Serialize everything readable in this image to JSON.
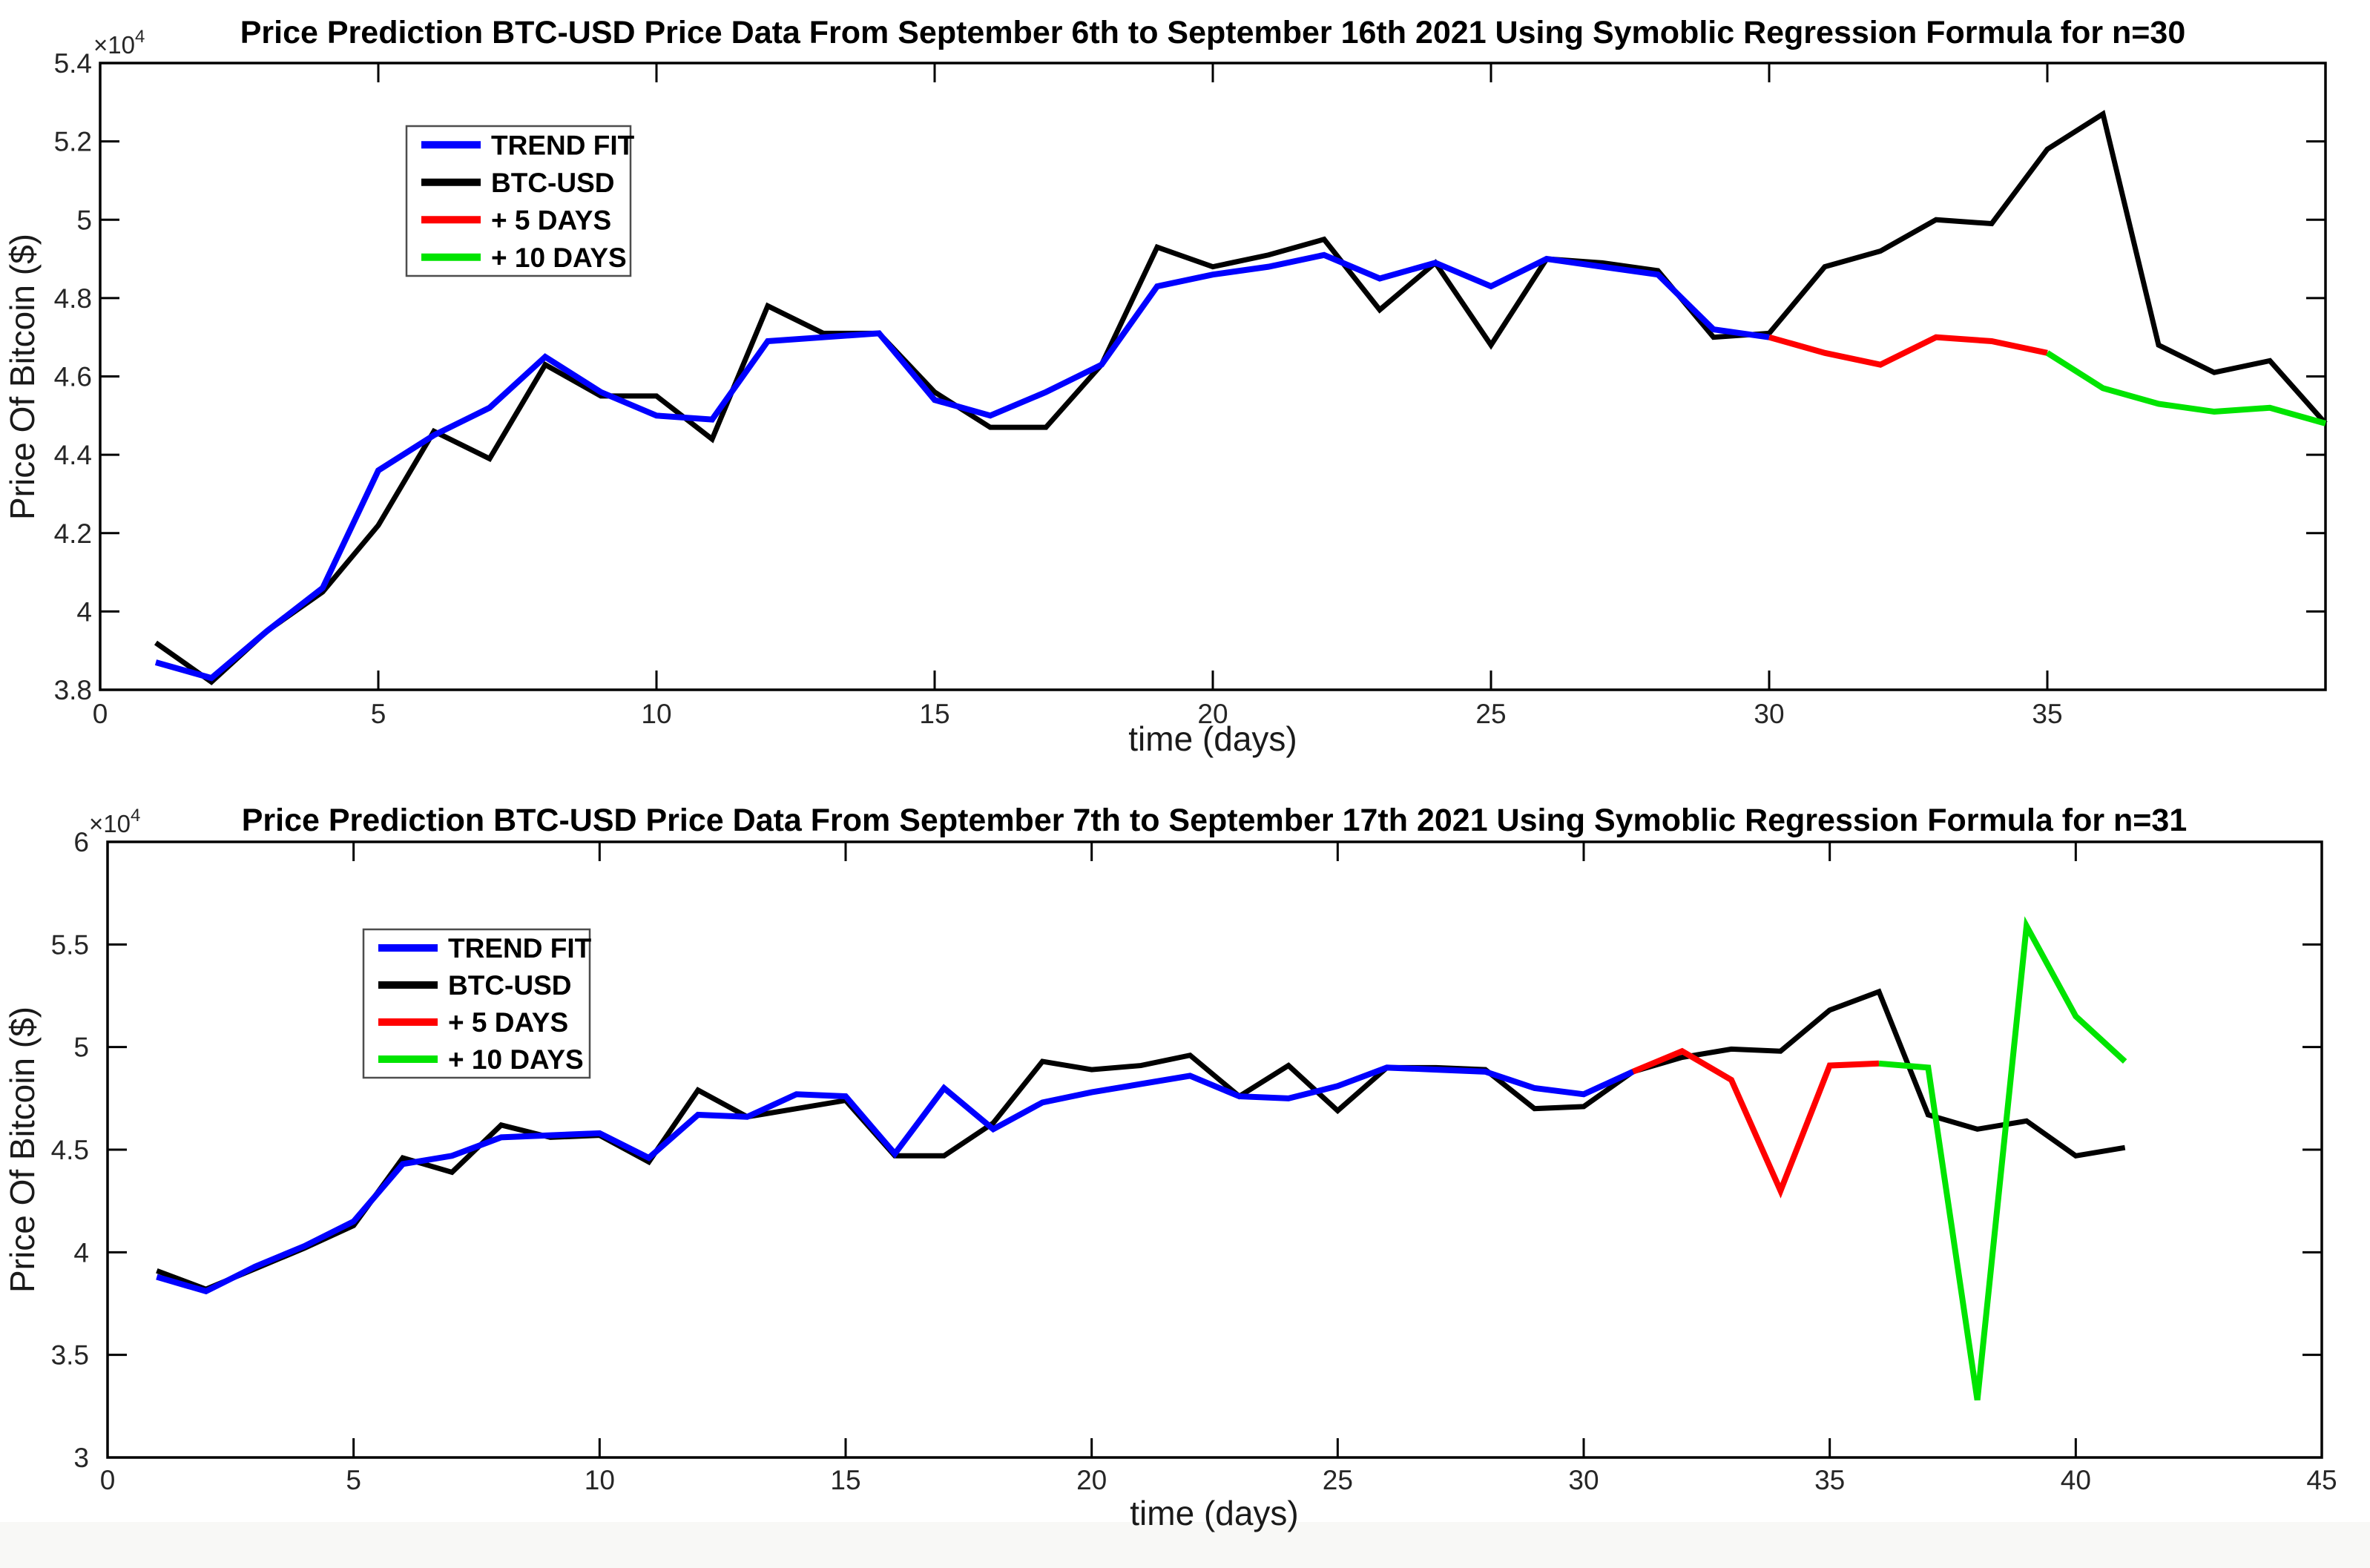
{
  "page": {
    "background": "#ffffff",
    "footer_strip_color": "#f8f8f6"
  },
  "colors": {
    "trend_fit": "#0000ff",
    "btc_usd": "#000000",
    "plus_5_days": "#ff0000",
    "plus_10_days": "#00e400",
    "axis": "#000000",
    "tick_label": "#262626"
  },
  "chart_data": [
    {
      "type": "line",
      "title": "Price Prediction BTC-USD Price Data From September 6th to September 16th 2021 Using Symoblic Regression Formula for n=30",
      "xlabel": "time (days)",
      "ylabel": "Price Of Bitcoin ($)",
      "y_multiplier": {
        "base": "×10",
        "exp": "4"
      },
      "y_unit": "USD × 10^4",
      "xlim": [
        0,
        40
      ],
      "ylim": [
        3.8,
        5.4
      ],
      "xticks": [
        0,
        5,
        10,
        15,
        20,
        25,
        30,
        35
      ],
      "yticks": [
        3.8,
        4,
        4.2,
        4.4,
        4.6,
        4.8,
        5,
        5.2,
        5.4
      ],
      "ytick_labels": [
        "3.8",
        "4",
        "4.2",
        "4.4",
        "4.6",
        "4.8",
        "5",
        "5.2",
        "5.4"
      ],
      "grid": false,
      "legend_position": "upper left area",
      "series": [
        {
          "name": "BTC-USD",
          "color_key": "btc_usd",
          "x_start": 1,
          "values": [
            3.92,
            3.82,
            3.95,
            4.05,
            4.22,
            4.46,
            4.39,
            4.63,
            4.55,
            4.55,
            4.44,
            4.78,
            4.71,
            4.71,
            4.56,
            4.47,
            4.47,
            4.63,
            4.93,
            4.88,
            4.91,
            4.95,
            4.77,
            4.89,
            4.68,
            4.9,
            4.89,
            4.87,
            4.7,
            4.71,
            4.88,
            4.92,
            5.0,
            4.99,
            5.18,
            5.27,
            4.68,
            4.61,
            4.64,
            4.48
          ]
        },
        {
          "name": "TREND FIT",
          "color_key": "trend_fit",
          "x_start": 1,
          "values": [
            3.87,
            3.83,
            3.95,
            4.06,
            4.36,
            4.45,
            4.52,
            4.65,
            4.56,
            4.5,
            4.49,
            4.69,
            4.7,
            4.71,
            4.54,
            4.5,
            4.56,
            4.63,
            4.83,
            4.86,
            4.88,
            4.91,
            4.85,
            4.89,
            4.83,
            4.9,
            4.88,
            4.86,
            4.72,
            4.7
          ]
        },
        {
          "name": "+ 5 DAYS",
          "color_key": "plus_5_days",
          "x_start": 30,
          "values": [
            4.7,
            4.66,
            4.63,
            4.7,
            4.69,
            4.66
          ]
        },
        {
          "name": "+ 10 DAYS",
          "color_key": "plus_10_days",
          "x_start": 35,
          "values": [
            4.66,
            4.57,
            4.53,
            4.51,
            4.52,
            4.48
          ]
        }
      ],
      "legend_order": [
        "TREND FIT",
        "BTC-USD",
        "+ 5 DAYS",
        "+ 10 DAYS"
      ]
    },
    {
      "type": "line",
      "title": "Price Prediction BTC-USD Price Data From September 7th to September 17th 2021 Using Symoblic Regression Formula for n=31",
      "xlabel": "time (days)",
      "ylabel": "Price Of Bitcoin ($)",
      "y_multiplier": {
        "base": "×10",
        "exp": "4"
      },
      "y_unit": "USD × 10^4",
      "xlim": [
        0,
        45
      ],
      "ylim": [
        3,
        6
      ],
      "xticks": [
        0,
        5,
        10,
        15,
        20,
        25,
        30,
        35,
        40,
        45
      ],
      "yticks": [
        3,
        3.5,
        4,
        4.5,
        5,
        5.5,
        6
      ],
      "ytick_labels": [
        "3",
        "3.5",
        "4",
        "4.5",
        "5",
        "5.5",
        "6"
      ],
      "grid": false,
      "legend_position": "upper left area",
      "series": [
        {
          "name": "BTC-USD",
          "color_key": "btc_usd",
          "x_start": 1,
          "values": [
            3.91,
            3.82,
            3.92,
            4.02,
            4.13,
            4.46,
            4.39,
            4.62,
            4.56,
            4.57,
            4.44,
            4.79,
            4.66,
            4.7,
            4.74,
            4.47,
            4.47,
            4.63,
            4.93,
            4.89,
            4.91,
            4.96,
            4.76,
            4.91,
            4.69,
            4.9,
            4.9,
            4.89,
            4.7,
            4.71,
            4.88,
            4.95,
            4.99,
            4.98,
            5.18,
            5.27,
            4.67,
            4.6,
            4.64,
            4.47,
            4.51
          ]
        },
        {
          "name": "TREND FIT",
          "color_key": "trend_fit",
          "x_start": 1,
          "values": [
            3.88,
            3.81,
            3.93,
            4.03,
            4.15,
            4.43,
            4.47,
            4.56,
            4.57,
            4.58,
            4.46,
            4.67,
            4.66,
            4.77,
            4.76,
            4.48,
            4.8,
            4.6,
            4.73,
            4.78,
            4.82,
            4.86,
            4.76,
            4.75,
            4.81,
            4.9,
            4.89,
            4.88,
            4.8,
            4.77,
            4.88
          ]
        },
        {
          "name": "+ 5 DAYS",
          "color_key": "plus_5_days",
          "x_start": 31,
          "values": [
            4.88,
            4.98,
            4.84,
            4.3,
            4.91,
            4.92
          ]
        },
        {
          "name": "+ 10 DAYS",
          "color_key": "plus_10_days",
          "x_start": 36,
          "values": [
            4.92,
            4.9,
            3.28,
            5.59,
            5.15,
            4.93
          ]
        }
      ],
      "legend_order": [
        "TREND FIT",
        "BTC-USD",
        "+ 5 DAYS",
        "+ 10 DAYS"
      ]
    }
  ]
}
